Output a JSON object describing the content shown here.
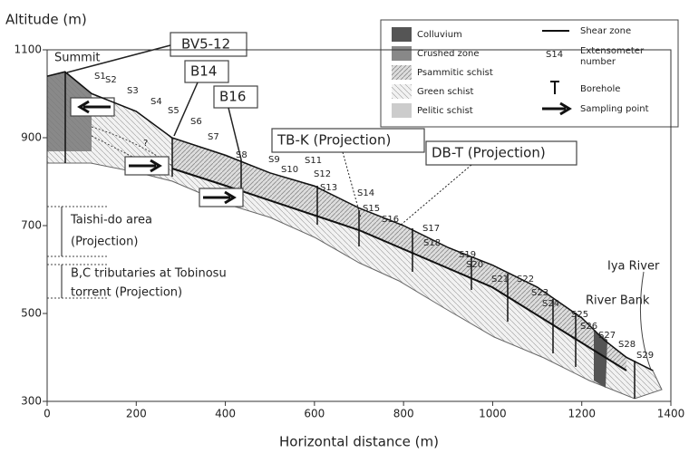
{
  "axes": {
    "y_title": "Altitude (m)",
    "x_title": "Horizontal distance (m)",
    "xlim": [
      0,
      1400
    ],
    "ylim": [
      300,
      1100
    ],
    "xticks": [
      0,
      200,
      400,
      600,
      800,
      1000,
      1200,
      1400
    ],
    "yticks": [
      300,
      500,
      700,
      900,
      1100
    ]
  },
  "profile": {
    "x": [
      0,
      40,
      100,
      200,
      280,
      400,
      500,
      600,
      700,
      800,
      900,
      1000,
      1100,
      1200,
      1250,
      1300,
      1360
    ],
    "y": [
      1040,
      1050,
      1000,
      960,
      900,
      860,
      820,
      790,
      740,
      700,
      650,
      610,
      560,
      490,
      440,
      400,
      370
    ]
  },
  "extensometers": [
    "S1",
    "S2",
    "S3",
    "S4",
    "S5",
    "S6",
    "S7",
    "S8",
    "S9",
    "S10",
    "S11",
    "S12",
    "S13",
    "S14",
    "S15",
    "S16",
    "S17",
    "S18",
    "S19",
    "S20",
    "S21",
    "S22",
    "S23",
    "S24",
    "S25",
    "S26",
    "S27",
    "S28",
    "S29"
  ],
  "annotations": {
    "summit": "Summit",
    "bv": "BV5-12",
    "b14": "B14",
    "b16": "B16",
    "tbk": "TB-K (Projection)",
    "dbt": "DB-T (Projection)",
    "q": "?",
    "taishi1": "Taishi-do area",
    "taishi2": "(Projection)",
    "bc1": "B,C tributaries at Tobinosu",
    "bc2": "torrent  (Projection)",
    "iya": "Iya River",
    "bank": "River Bank"
  },
  "legend": {
    "colluvium": "Colluvium",
    "crushed": "Crushed zone",
    "psammitic": "Psammitic schist",
    "green": "Green schist",
    "pelitic": "Pelitic schist",
    "shear": "Shear zone",
    "s14": "S14",
    "ext1": "Extensometer",
    "ext2": "number",
    "borehole": "Borehole",
    "sampling": "Sampling point"
  }
}
